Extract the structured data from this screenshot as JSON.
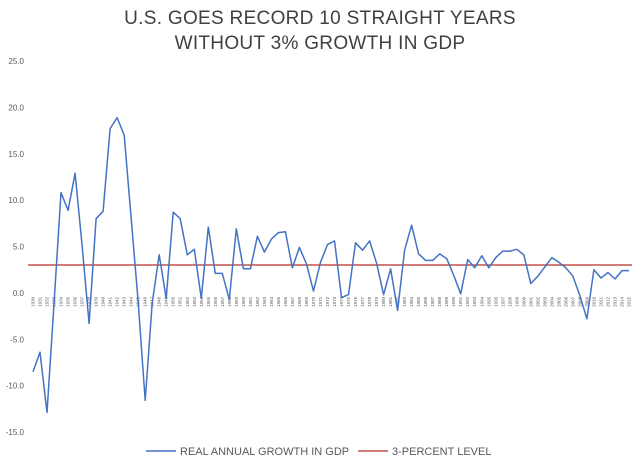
{
  "chart_data": {
    "type": "line",
    "title_lines": [
      "U.S. GOES RECORD 10 STRAIGHT YEARS",
      "WITHOUT 3% GROWTH IN GDP"
    ],
    "xlabel": "",
    "ylabel": "",
    "ylim": [
      -15,
      25
    ],
    "yticks": [
      25.0,
      20.0,
      15.0,
      10.0,
      5.0,
      0.0,
      -5.0,
      -10.0,
      -15.0
    ],
    "grid": false,
    "legend_position": "bottom",
    "categories": [
      1930,
      1931,
      1932,
      1933,
      1934,
      1935,
      1936,
      1937,
      1938,
      1939,
      1940,
      1941,
      1942,
      1943,
      1944,
      1945,
      1946,
      1947,
      1948,
      1949,
      1950,
      1951,
      1952,
      1953,
      1954,
      1955,
      1956,
      1957,
      1958,
      1959,
      1960,
      1961,
      1962,
      1963,
      1964,
      1965,
      1966,
      1967,
      1968,
      1969,
      1970,
      1971,
      1972,
      1973,
      1974,
      1975,
      1976,
      1977,
      1978,
      1979,
      1980,
      1981,
      1982,
      1983,
      1984,
      1985,
      1986,
      1987,
      1988,
      1989,
      1990,
      1991,
      1992,
      1993,
      1994,
      1995,
      1996,
      1997,
      1998,
      1999,
      2000,
      2001,
      2002,
      2003,
      2004,
      2005,
      2006,
      2007,
      2008,
      2009,
      2010,
      2011,
      2012,
      2013,
      2014,
      2015
    ],
    "series": [
      {
        "name": "REAL ANNUAL GROWTH IN GDP",
        "color": "#4472c4",
        "values": [
          -8.5,
          -6.4,
          -12.9,
          -1.2,
          10.8,
          8.9,
          12.9,
          5.1,
          -3.3,
          8.0,
          8.8,
          17.7,
          18.9,
          17.0,
          8.0,
          -1.0,
          -11.6,
          -1.1,
          4.1,
          -0.6,
          8.7,
          8.0,
          4.1,
          4.7,
          -0.6,
          7.1,
          2.1,
          2.1,
          -0.7,
          6.9,
          2.6,
          2.6,
          6.1,
          4.4,
          5.8,
          6.5,
          6.6,
          2.7,
          4.9,
          3.1,
          0.2,
          3.3,
          5.2,
          5.6,
          -0.5,
          -0.2,
          5.4,
          4.6,
          5.6,
          3.2,
          -0.2,
          2.6,
          -1.9,
          4.6,
          7.3,
          4.2,
          3.5,
          3.5,
          4.2,
          3.7,
          1.9,
          -0.1,
          3.6,
          2.7,
          4.0,
          2.7,
          3.8,
          4.5,
          4.5,
          4.7,
          4.1,
          1.0,
          1.8,
          2.8,
          3.8,
          3.3,
          2.7,
          1.8,
          -0.3,
          -2.8,
          2.5,
          1.6,
          2.2,
          1.5,
          2.4,
          2.4
        ]
      },
      {
        "name": "3-PERCENT LEVEL",
        "color": "#c0504d",
        "constant": 3
      }
    ]
  }
}
